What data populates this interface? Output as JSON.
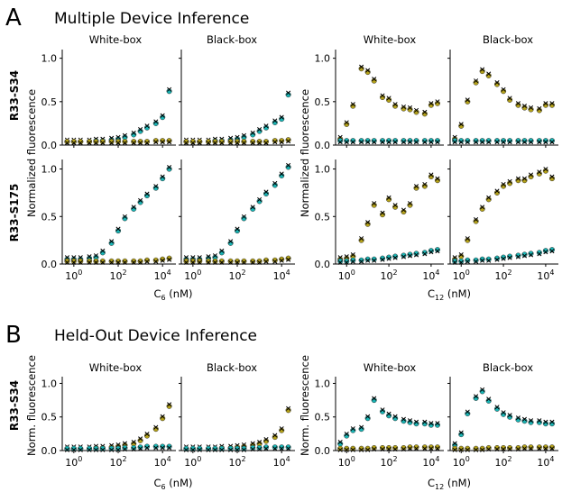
{
  "figure": {
    "panel_a_letter": "A",
    "panel_a_title": "Multiple Device Inference",
    "panel_b_letter": "B",
    "panel_b_title": "Held-Out Device Inference",
    "col_white": "White-box",
    "col_black": "Black-box",
    "row_s34": "R33-S34",
    "row_s175": "R33-S175",
    "ylabel_a": "Normalized fluorescence",
    "ylabel_b": "Norm. fluorescence",
    "xlabel_c6_prefix": "C",
    "xlabel_c6_sub": "6",
    "xlabel_c12_prefix": "C",
    "xlabel_c12_sub": "12",
    "xlabel_unit": " (nM)",
    "yticks": [
      "0.0",
      "0.5",
      "1.0"
    ],
    "xtick_base": "10",
    "xtick_exps": [
      "0",
      "2",
      "4"
    ]
  },
  "colors": {
    "teal": "#1ab5b5",
    "olive": "#b5a21a",
    "marker_edge": "#333333"
  },
  "chart_data": [
    {
      "type": "scatter",
      "panel": "A",
      "row": "R33-S34",
      "column": "White-box",
      "inducer": "C6",
      "x": [
        0.5,
        1,
        2,
        5,
        10,
        20,
        50,
        100,
        200,
        500,
        1000,
        2000,
        5000,
        10000,
        20000
      ],
      "xlim": [
        0.3,
        40000
      ],
      "ylim": [
        0,
        1.1
      ],
      "xscale": "log",
      "series": [
        {
          "color": "teal",
          "values": [
            0.04,
            0.04,
            0.04,
            0.04,
            0.05,
            0.05,
            0.06,
            0.07,
            0.09,
            0.12,
            0.16,
            0.2,
            0.25,
            0.32,
            0.62
          ]
        },
        {
          "color": "olive",
          "values": [
            0.04,
            0.04,
            0.04,
            0.04,
            0.04,
            0.04,
            0.04,
            0.04,
            0.04,
            0.04,
            0.04,
            0.04,
            0.05,
            0.05,
            0.05
          ]
        }
      ]
    },
    {
      "type": "scatter",
      "panel": "A",
      "row": "R33-S34",
      "column": "Black-box",
      "inducer": "C6",
      "x": [
        0.5,
        1,
        2,
        5,
        10,
        20,
        50,
        100,
        200,
        500,
        1000,
        2000,
        5000,
        10000,
        20000
      ],
      "xlim": [
        0.3,
        40000
      ],
      "ylim": [
        0,
        1.1
      ],
      "xscale": "log",
      "series": [
        {
          "color": "teal",
          "values": [
            0.04,
            0.04,
            0.04,
            0.04,
            0.05,
            0.05,
            0.06,
            0.07,
            0.09,
            0.12,
            0.16,
            0.2,
            0.26,
            0.3,
            0.58
          ]
        },
        {
          "color": "olive",
          "values": [
            0.04,
            0.04,
            0.04,
            0.04,
            0.04,
            0.04,
            0.04,
            0.04,
            0.04,
            0.04,
            0.04,
            0.04,
            0.05,
            0.05,
            0.06
          ]
        }
      ]
    },
    {
      "type": "scatter",
      "panel": "A",
      "row": "R33-S34",
      "column": "White-box",
      "inducer": "C12",
      "x": [
        0.5,
        1,
        2,
        5,
        10,
        20,
        50,
        100,
        200,
        500,
        1000,
        2000,
        5000,
        10000,
        20000
      ],
      "xlim": [
        0.3,
        40000
      ],
      "ylim": [
        0,
        1.1
      ],
      "xscale": "log",
      "series": [
        {
          "color": "olive",
          "values": [
            0.07,
            0.24,
            0.45,
            0.88,
            0.84,
            0.74,
            0.55,
            0.52,
            0.45,
            0.42,
            0.41,
            0.38,
            0.36,
            0.46,
            0.48
          ]
        },
        {
          "color": "teal",
          "values": [
            0.05,
            0.05,
            0.05,
            0.05,
            0.05,
            0.05,
            0.05,
            0.05,
            0.05,
            0.05,
            0.05,
            0.05,
            0.05,
            0.05,
            0.05
          ]
        }
      ]
    },
    {
      "type": "scatter",
      "panel": "A",
      "row": "R33-S34",
      "column": "Black-box",
      "inducer": "C12",
      "x": [
        0.5,
        1,
        2,
        5,
        10,
        20,
        50,
        100,
        200,
        500,
        1000,
        2000,
        5000,
        10000,
        20000
      ],
      "xlim": [
        0.3,
        40000
      ],
      "ylim": [
        0,
        1.1
      ],
      "xscale": "log",
      "series": [
        {
          "color": "olive",
          "values": [
            0.07,
            0.22,
            0.5,
            0.72,
            0.85,
            0.8,
            0.7,
            0.62,
            0.52,
            0.46,
            0.43,
            0.41,
            0.4,
            0.46,
            0.46
          ]
        },
        {
          "color": "teal",
          "values": [
            0.05,
            0.05,
            0.05,
            0.05,
            0.05,
            0.05,
            0.05,
            0.05,
            0.05,
            0.05,
            0.05,
            0.05,
            0.05,
            0.05,
            0.05
          ]
        }
      ]
    },
    {
      "type": "scatter",
      "panel": "A",
      "row": "R33-S175",
      "column": "White-box",
      "inducer": "C6",
      "x": [
        0.5,
        1,
        2,
        5,
        10,
        20,
        50,
        100,
        200,
        500,
        1000,
        2000,
        5000,
        10000,
        20000
      ],
      "xlim": [
        0.3,
        40000
      ],
      "ylim": [
        0,
        1.1
      ],
      "xscale": "log",
      "series": [
        {
          "color": "teal",
          "values": [
            0.05,
            0.05,
            0.05,
            0.06,
            0.07,
            0.12,
            0.22,
            0.35,
            0.48,
            0.58,
            0.65,
            0.72,
            0.8,
            0.9,
            1.0
          ]
        },
        {
          "color": "olive",
          "values": [
            0.03,
            0.03,
            0.03,
            0.03,
            0.03,
            0.03,
            0.03,
            0.03,
            0.03,
            0.03,
            0.03,
            0.04,
            0.04,
            0.05,
            0.06
          ]
        }
      ]
    },
    {
      "type": "scatter",
      "panel": "A",
      "row": "R33-S175",
      "column": "Black-box",
      "inducer": "C6",
      "x": [
        0.5,
        1,
        2,
        5,
        10,
        20,
        50,
        100,
        200,
        500,
        1000,
        2000,
        5000,
        10000,
        20000
      ],
      "xlim": [
        0.3,
        40000
      ],
      "ylim": [
        0,
        1.1
      ],
      "xscale": "log",
      "series": [
        {
          "color": "teal",
          "values": [
            0.05,
            0.05,
            0.05,
            0.06,
            0.07,
            0.12,
            0.22,
            0.35,
            0.48,
            0.58,
            0.66,
            0.74,
            0.83,
            0.93,
            1.02
          ]
        },
        {
          "color": "olive",
          "values": [
            0.03,
            0.03,
            0.03,
            0.03,
            0.03,
            0.03,
            0.03,
            0.03,
            0.03,
            0.03,
            0.03,
            0.04,
            0.04,
            0.05,
            0.06
          ]
        }
      ]
    },
    {
      "type": "scatter",
      "panel": "A",
      "row": "R33-S175",
      "column": "White-box",
      "inducer": "C12",
      "x": [
        0.5,
        1,
        2,
        5,
        10,
        20,
        50,
        100,
        200,
        500,
        1000,
        2000,
        5000,
        10000,
        20000
      ],
      "xlim": [
        0.3,
        40000
      ],
      "ylim": [
        0,
        1.1
      ],
      "xscale": "log",
      "series": [
        {
          "color": "olive",
          "values": [
            0.05,
            0.06,
            0.08,
            0.25,
            0.42,
            0.62,
            0.52,
            0.68,
            0.6,
            0.55,
            0.62,
            0.8,
            0.82,
            0.92,
            0.88
          ]
        },
        {
          "color": "teal",
          "values": [
            0.03,
            0.03,
            0.04,
            0.04,
            0.05,
            0.05,
            0.06,
            0.07,
            0.08,
            0.09,
            0.1,
            0.11,
            0.12,
            0.14,
            0.15
          ]
        }
      ]
    },
    {
      "type": "scatter",
      "panel": "A",
      "row": "R33-S175",
      "column": "Black-box",
      "inducer": "C12",
      "x": [
        0.5,
        1,
        2,
        5,
        10,
        20,
        50,
        100,
        200,
        500,
        1000,
        2000,
        5000,
        10000,
        20000
      ],
      "xlim": [
        0.3,
        40000
      ],
      "ylim": [
        0,
        1.1
      ],
      "xscale": "log",
      "series": [
        {
          "color": "olive",
          "values": [
            0.05,
            0.08,
            0.25,
            0.45,
            0.58,
            0.68,
            0.75,
            0.82,
            0.85,
            0.88,
            0.88,
            0.92,
            0.95,
            0.98,
            0.9
          ]
        },
        {
          "color": "teal",
          "values": [
            0.03,
            0.03,
            0.04,
            0.04,
            0.05,
            0.05,
            0.06,
            0.07,
            0.08,
            0.09,
            0.1,
            0.11,
            0.12,
            0.14,
            0.15
          ]
        }
      ]
    },
    {
      "type": "scatter",
      "panel": "B",
      "row": "R33-S34",
      "column": "White-box",
      "inducer": "C6",
      "x": [
        0.5,
        1,
        2,
        5,
        10,
        20,
        50,
        100,
        200,
        500,
        1000,
        2000,
        5000,
        10000,
        20000
      ],
      "xlim": [
        0.3,
        40000
      ],
      "ylim": [
        0,
        1.1
      ],
      "xscale": "log",
      "series": [
        {
          "color": "olive",
          "values": [
            0.03,
            0.03,
            0.03,
            0.03,
            0.04,
            0.04,
            0.05,
            0.06,
            0.08,
            0.1,
            0.15,
            0.22,
            0.32,
            0.48,
            0.66
          ]
        },
        {
          "color": "teal",
          "values": [
            0.03,
            0.03,
            0.03,
            0.03,
            0.03,
            0.03,
            0.03,
            0.03,
            0.04,
            0.04,
            0.05,
            0.06,
            0.06,
            0.06,
            0.06
          ]
        }
      ]
    },
    {
      "type": "scatter",
      "panel": "B",
      "row": "R33-S34",
      "column": "Black-box",
      "inducer": "C6",
      "x": [
        0.5,
        1,
        2,
        5,
        10,
        20,
        50,
        100,
        200,
        500,
        1000,
        2000,
        5000,
        10000,
        20000
      ],
      "xlim": [
        0.3,
        40000
      ],
      "ylim": [
        0,
        1.1
      ],
      "xscale": "log",
      "series": [
        {
          "color": "olive",
          "values": [
            0.03,
            0.03,
            0.03,
            0.03,
            0.03,
            0.04,
            0.04,
            0.05,
            0.06,
            0.08,
            0.1,
            0.14,
            0.2,
            0.3,
            0.6
          ]
        },
        {
          "color": "teal",
          "values": [
            0.03,
            0.03,
            0.03,
            0.03,
            0.03,
            0.03,
            0.03,
            0.03,
            0.03,
            0.04,
            0.04,
            0.05,
            0.05,
            0.05,
            0.05
          ]
        }
      ]
    },
    {
      "type": "scatter",
      "panel": "B",
      "row": "R33-S34",
      "column": "White-box",
      "inducer": "C12",
      "x": [
        0.5,
        1,
        2,
        5,
        10,
        20,
        50,
        100,
        200,
        500,
        1000,
        2000,
        5000,
        10000,
        20000
      ],
      "xlim": [
        0.3,
        40000
      ],
      "ylim": [
        0,
        1.1
      ],
      "xscale": "log",
      "series": [
        {
          "color": "teal",
          "values": [
            0.1,
            0.22,
            0.3,
            0.32,
            0.48,
            0.75,
            0.58,
            0.52,
            0.48,
            0.44,
            0.42,
            0.4,
            0.4,
            0.38,
            0.38
          ]
        },
        {
          "color": "olive",
          "values": [
            0.03,
            0.03,
            0.03,
            0.03,
            0.03,
            0.04,
            0.04,
            0.04,
            0.04,
            0.04,
            0.05,
            0.05,
            0.05,
            0.05,
            0.05
          ]
        }
      ]
    },
    {
      "type": "scatter",
      "panel": "B",
      "row": "R33-S34",
      "column": "Black-box",
      "inducer": "C12",
      "x": [
        0.5,
        1,
        2,
        5,
        10,
        20,
        50,
        100,
        200,
        500,
        1000,
        2000,
        5000,
        10000,
        20000
      ],
      "xlim": [
        0.3,
        40000
      ],
      "ylim": [
        0,
        1.1
      ],
      "xscale": "log",
      "series": [
        {
          "color": "teal",
          "values": [
            0.08,
            0.24,
            0.55,
            0.78,
            0.88,
            0.74,
            0.62,
            0.54,
            0.5,
            0.46,
            0.44,
            0.42,
            0.42,
            0.4,
            0.4
          ]
        },
        {
          "color": "olive",
          "values": [
            0.03,
            0.03,
            0.03,
            0.03,
            0.03,
            0.04,
            0.04,
            0.04,
            0.04,
            0.04,
            0.05,
            0.05,
            0.05,
            0.05,
            0.05
          ]
        }
      ]
    }
  ]
}
